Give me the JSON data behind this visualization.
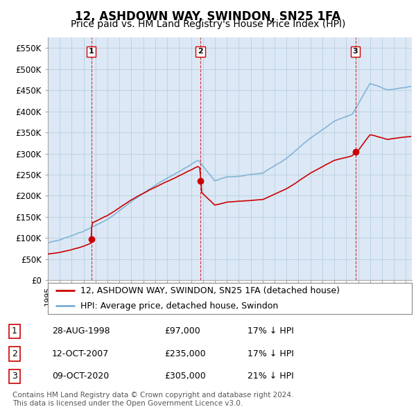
{
  "title": "12, ASHDOWN WAY, SWINDON, SN25 1FA",
  "subtitle": "Price paid vs. HM Land Registry's House Price Index (HPI)",
  "ylim": [
    0,
    575000
  ],
  "yticks": [
    0,
    50000,
    100000,
    150000,
    200000,
    250000,
    300000,
    350000,
    400000,
    450000,
    500000,
    550000
  ],
  "ytick_labels": [
    "£0",
    "£50K",
    "£100K",
    "£150K",
    "£200K",
    "£250K",
    "£300K",
    "£350K",
    "£400K",
    "£450K",
    "£500K",
    "£550K"
  ],
  "sale_dates": [
    1998.65,
    2007.78,
    2020.77
  ],
  "sale_prices": [
    97000,
    235000,
    305000
  ],
  "sale_labels": [
    "1",
    "2",
    "3"
  ],
  "legend_line1": "12, ASHDOWN WAY, SWINDON, SN25 1FA (detached house)",
  "legend_line2": "HPI: Average price, detached house, Swindon",
  "table_rows": [
    [
      "1",
      "28-AUG-1998",
      "£97,000",
      "17% ↓ HPI"
    ],
    [
      "2",
      "12-OCT-2007",
      "£235,000",
      "17% ↓ HPI"
    ],
    [
      "3",
      "09-OCT-2020",
      "£305,000",
      "21% ↓ HPI"
    ]
  ],
  "footnote": "Contains HM Land Registry data © Crown copyright and database right 2024.\nThis data is licensed under the Open Government Licence v3.0.",
  "property_line_color": "#cc0000",
  "hpi_line_color": "#7aaed6",
  "chart_bg_color": "#dce8f5",
  "sale_marker_color": "#cc0000",
  "sale_vline_color": "#cc0000",
  "background_color": "#ffffff",
  "grid_color": "#b8cfe0",
  "title_fontsize": 12,
  "subtitle_fontsize": 10,
  "tick_fontsize": 8.5,
  "legend_fontsize": 9,
  "table_fontsize": 9,
  "footnote_fontsize": 7.5
}
